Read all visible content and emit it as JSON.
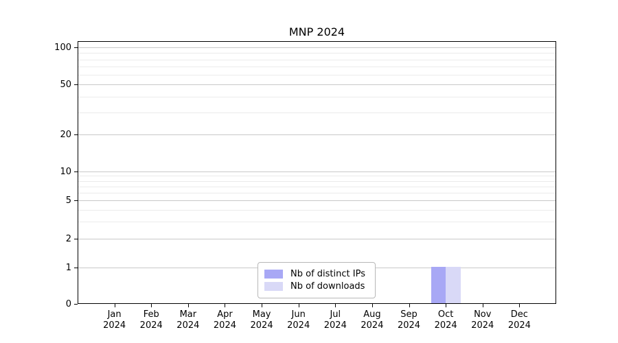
{
  "chart_data": {
    "type": "bar",
    "title": "MNP 2024",
    "categories": [
      "Jan",
      "Feb",
      "Mar",
      "Apr",
      "May",
      "Jun",
      "Jul",
      "Aug",
      "Sep",
      "Oct",
      "Nov",
      "Dec"
    ],
    "category_year_line": "2024",
    "series": [
      {
        "name": "Nb of distinct IPs",
        "color": "#a8a8f5",
        "values": [
          0,
          0,
          0,
          0,
          0,
          0,
          0,
          0,
          0,
          1,
          0,
          0
        ]
      },
      {
        "name": "Nb of downloads",
        "color": "#d9d9f7",
        "values": [
          0,
          0,
          0,
          0,
          0,
          0,
          0,
          0,
          0,
          1,
          0,
          0
        ]
      }
    ],
    "y_axis": {
      "scale": "symlog",
      "major_ticks": [
        0,
        1,
        2,
        5,
        10,
        20,
        50,
        100
      ],
      "minor_ticks": [
        3,
        4,
        6,
        7,
        8,
        9,
        30,
        40,
        60,
        70,
        80,
        90
      ],
      "ylim": [
        0,
        110
      ]
    },
    "x_axis": {
      "year": "2024"
    },
    "legend": {
      "position": "lower center"
    },
    "grid": {
      "major_color": "#c8c8c8",
      "minor_color": "#ebebeb"
    },
    "colors": {
      "background": "#ffffff",
      "spine": "#000000",
      "text": "#000000"
    }
  }
}
